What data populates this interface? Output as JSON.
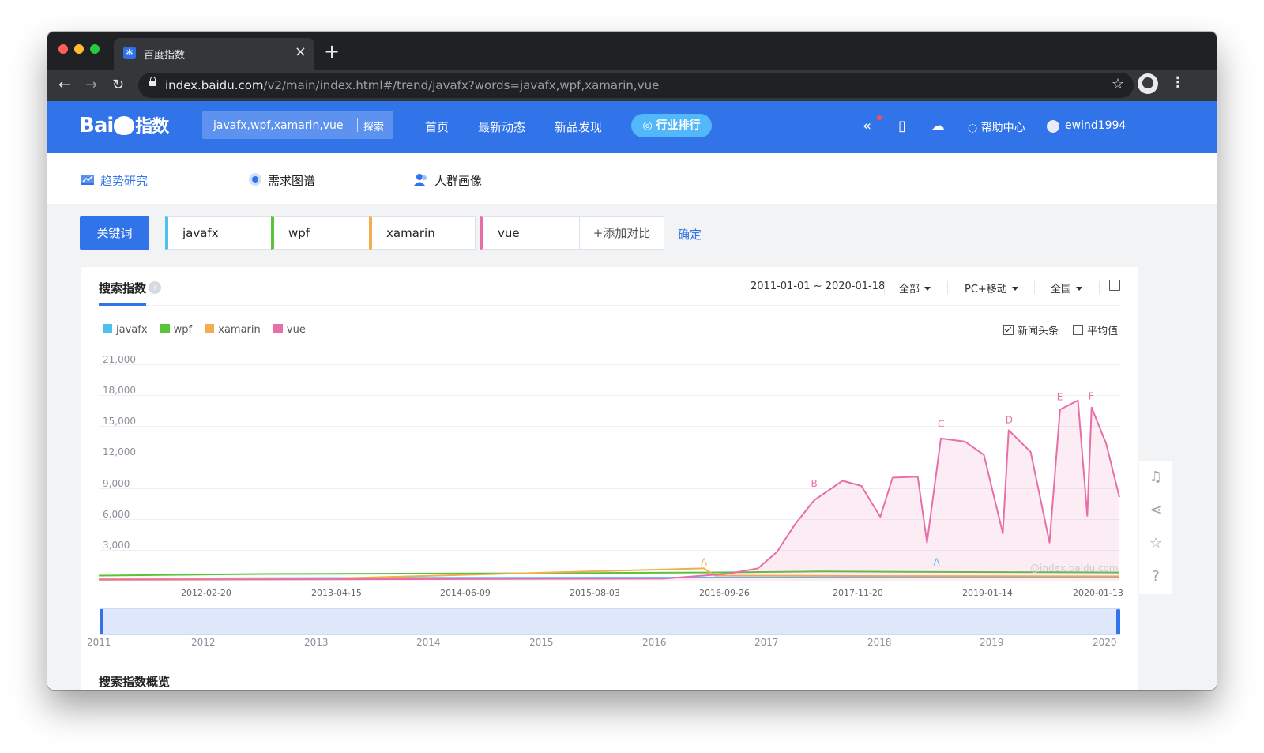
{
  "browser": {
    "tab_title": "百度指数",
    "tab_icon": "baidu-paw-icon",
    "url_host": "index.baidu.com",
    "url_path": "/v2/main/index.html#/trend/javafx?words=javafx,wpf,xamarin,vue"
  },
  "header": {
    "logo_text": "Bai",
    "logo_suffix": "指数",
    "search_value": "javafx,wpf,xamarin,vue",
    "search_button": "探索",
    "nav": [
      "首页",
      "最新动态",
      "新品发现"
    ],
    "rank_button": "行业排行",
    "help_label": "帮助中心",
    "username": "ewind1994"
  },
  "subnav": {
    "items": [
      "趋势研究",
      "需求图谱",
      "人群画像"
    ]
  },
  "keywords": {
    "label": "关键词",
    "items": [
      {
        "word": "javafx",
        "color": "#4fc0ee"
      },
      {
        "word": "wpf",
        "color": "#5ac33c"
      },
      {
        "word": "xamarin",
        "color": "#f2ad4e"
      },
      {
        "word": "vue",
        "color": "#e86ea8"
      }
    ],
    "add_label": "添加对比",
    "confirm_label": "确定"
  },
  "search_index": {
    "title": "搜索指数",
    "date_range": "2011-01-01 ~ 2020-01-18",
    "filter_scope": "全部",
    "filter_device": "PC+移动",
    "filter_region": "全国",
    "opt_news": "新闻头条",
    "opt_average": "平均值",
    "watermark": "@index.baidu.com",
    "brush_years": [
      "2011",
      "2012",
      "2013",
      "2014",
      "2015",
      "2016",
      "2017",
      "2018",
      "2019",
      "2020"
    ],
    "next_section_title": "搜索指数概览"
  },
  "chart_data": {
    "type": "line",
    "ylim": [
      0,
      21000
    ],
    "y_ticks": [
      "21,000",
      "18,000",
      "15,000",
      "12,000",
      "9,000",
      "6,000",
      "3,000"
    ],
    "x_ticks": [
      "2012-02-20",
      "2013-04-15",
      "2014-06-09",
      "2015-08-03",
      "2016-09-26",
      "2017-11-20",
      "2019-01-14",
      "2020-01-13"
    ],
    "x_range": [
      "2011-01-01",
      "2020-01-18"
    ],
    "annotations": [
      {
        "label": "A",
        "date": "2016-05-10",
        "value": 1200,
        "series": "xamarin"
      },
      {
        "label": "B",
        "date": "2017-05-01",
        "value": 8800,
        "series": "vue"
      },
      {
        "label": "A",
        "date": "2018-06-01",
        "value": 1200,
        "series": "javafx"
      },
      {
        "label": "C",
        "date": "2018-06-15",
        "value": 14600,
        "series": "vue"
      },
      {
        "label": "D",
        "date": "2019-01-20",
        "value": 15000,
        "series": "vue"
      },
      {
        "label": "E",
        "date": "2019-07-05",
        "value": 17200,
        "series": "vue"
      },
      {
        "label": "F",
        "date": "2019-10-15",
        "value": 17300,
        "series": "vue"
      }
    ],
    "series": [
      {
        "name": "javafx",
        "color": "#4fc0ee",
        "points": [
          [
            "2011-01-01",
            200
          ],
          [
            "2012-06-01",
            250
          ],
          [
            "2014-01-01",
            280
          ],
          [
            "2016-01-01",
            300
          ],
          [
            "2018-01-01",
            320
          ],
          [
            "2020-01-13",
            340
          ]
        ]
      },
      {
        "name": "wpf",
        "color": "#5ac33c",
        "points": [
          [
            "2011-01-01",
            500
          ],
          [
            "2012-06-01",
            650
          ],
          [
            "2014-01-01",
            700
          ],
          [
            "2015-06-01",
            750
          ],
          [
            "2016-06-01",
            800
          ],
          [
            "2017-06-01",
            900
          ],
          [
            "2018-06-01",
            850
          ],
          [
            "2019-06-01",
            820
          ],
          [
            "2020-01-13",
            800
          ]
        ]
      },
      {
        "name": "xamarin",
        "color": "#f2ad4e",
        "points": [
          [
            "2011-01-01",
            150
          ],
          [
            "2013-01-01",
            200
          ],
          [
            "2016-05-10",
            1200
          ],
          [
            "2016-06-15",
            500
          ],
          [
            "2018-01-01",
            450
          ],
          [
            "2020-01-13",
            420
          ]
        ]
      },
      {
        "name": "vue",
        "color": "#e86ea8",
        "points": [
          [
            "2011-01-01",
            100
          ],
          [
            "2016-01-01",
            200
          ],
          [
            "2016-08-01",
            700
          ],
          [
            "2016-11-01",
            1200
          ],
          [
            "2017-01-01",
            2800
          ],
          [
            "2017-03-01",
            5500
          ],
          [
            "2017-05-01",
            7800
          ],
          [
            "2017-08-01",
            9700
          ],
          [
            "2017-10-01",
            9200
          ],
          [
            "2017-12-01",
            6200
          ],
          [
            "2018-01-10",
            10000
          ],
          [
            "2018-04-01",
            10100
          ],
          [
            "2018-05-01",
            3700
          ],
          [
            "2018-06-15",
            13800
          ],
          [
            "2018-09-01",
            13500
          ],
          [
            "2018-11-01",
            12200
          ],
          [
            "2019-01-01",
            4600
          ],
          [
            "2019-01-20",
            14600
          ],
          [
            "2019-04-01",
            12500
          ],
          [
            "2019-06-01",
            3700
          ],
          [
            "2019-07-05",
            16600
          ],
          [
            "2019-09-01",
            17500
          ],
          [
            "2019-10-01",
            6300
          ],
          [
            "2019-10-15",
            16800
          ],
          [
            "2019-12-01",
            13300
          ],
          [
            "2020-01-13",
            8100
          ]
        ]
      }
    ]
  }
}
